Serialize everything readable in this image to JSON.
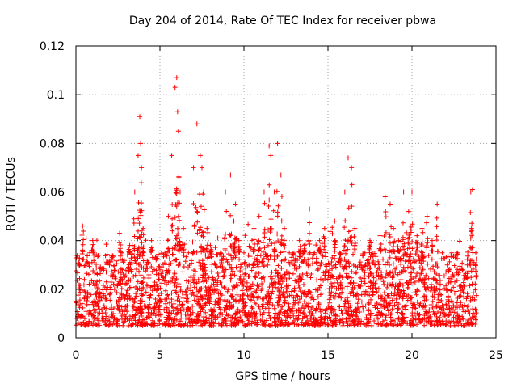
{
  "chart_data": {
    "type": "scatter",
    "title": "Day 204 of 2014, Rate Of TEC Index for receiver pbwa",
    "xlabel": "GPS time / hours",
    "ylabel": "ROTI / TECUs",
    "xlim": [
      0,
      25
    ],
    "ylim": [
      0,
      0.12
    ],
    "x_ticks": [
      0,
      5,
      10,
      15,
      20,
      25
    ],
    "x_tick_labels": [
      "0",
      "5",
      "10",
      "15",
      "20",
      "25"
    ],
    "y_ticks": [
      0,
      0.02,
      0.04,
      0.06,
      0.08,
      0.1,
      0.12
    ],
    "y_tick_labels": [
      "0",
      "0.02",
      "0.04",
      "0.06",
      "0.08",
      "0.1",
      "0.12"
    ],
    "grid": true,
    "marker": "+",
    "color": "#ff0000",
    "series": [
      {
        "name": "ROTI",
        "x": [
          0.0,
          0.2,
          0.4,
          0.5,
          0.7,
          1.0,
          1.2,
          1.5,
          1.8,
          2.0,
          2.3,
          2.6,
          2.9,
          3.2,
          3.5,
          3.7,
          3.8,
          3.85,
          3.9,
          4.0,
          4.2,
          4.5,
          4.8,
          5.0,
          5.3,
          5.5,
          5.7,
          5.9,
          6.0,
          6.05,
          6.1,
          6.2,
          6.4,
          6.7,
          7.0,
          7.2,
          7.4,
          7.5,
          7.6,
          7.8,
          8.0,
          8.3,
          8.6,
          8.9,
          9.2,
          9.4,
          9.5,
          9.7,
          10.0,
          10.3,
          10.6,
          10.9,
          11.2,
          11.5,
          11.6,
          11.8,
          12.0,
          12.2,
          12.4,
          12.7,
          13.0,
          13.3,
          13.6,
          13.9,
          14.2,
          14.5,
          14.8,
          15.1,
          15.4,
          15.7,
          16.0,
          16.2,
          16.4,
          16.6,
          16.9,
          17.2,
          17.5,
          17.8,
          18.1,
          18.4,
          18.7,
          18.9,
          19.2,
          19.5,
          19.8,
          20.0,
          20.3,
          20.6,
          20.9,
          21.2,
          21.5,
          21.8,
          22.1,
          22.4,
          22.7,
          23.0,
          23.3,
          23.5,
          23.6,
          23.8
        ],
        "y": [
          0.034,
          0.02,
          0.046,
          0.024,
          0.018,
          0.04,
          0.022,
          0.028,
          0.016,
          0.03,
          0.02,
          0.043,
          0.025,
          0.038,
          0.06,
          0.075,
          0.091,
          0.08,
          0.07,
          0.045,
          0.03,
          0.04,
          0.022,
          0.028,
          0.035,
          0.05,
          0.075,
          0.103,
          0.107,
          0.093,
          0.085,
          0.06,
          0.045,
          0.035,
          0.07,
          0.088,
          0.075,
          0.07,
          0.06,
          0.045,
          0.038,
          0.03,
          0.035,
          0.06,
          0.067,
          0.048,
          0.055,
          0.04,
          0.035,
          0.03,
          0.045,
          0.05,
          0.06,
          0.079,
          0.075,
          0.06,
          0.08,
          0.067,
          0.045,
          0.035,
          0.03,
          0.04,
          0.038,
          0.053,
          0.035,
          0.04,
          0.045,
          0.03,
          0.048,
          0.035,
          0.06,
          0.074,
          0.07,
          0.045,
          0.03,
          0.035,
          0.04,
          0.03,
          0.042,
          0.058,
          0.055,
          0.045,
          0.04,
          0.06,
          0.052,
          0.06,
          0.042,
          0.045,
          0.05,
          0.04,
          0.055,
          0.035,
          0.03,
          0.025,
          0.035,
          0.028,
          0.03,
          0.06,
          0.061,
          0.035
        ]
      }
    ],
    "background_noise_band": [
      0.005,
      0.035
    ]
  }
}
